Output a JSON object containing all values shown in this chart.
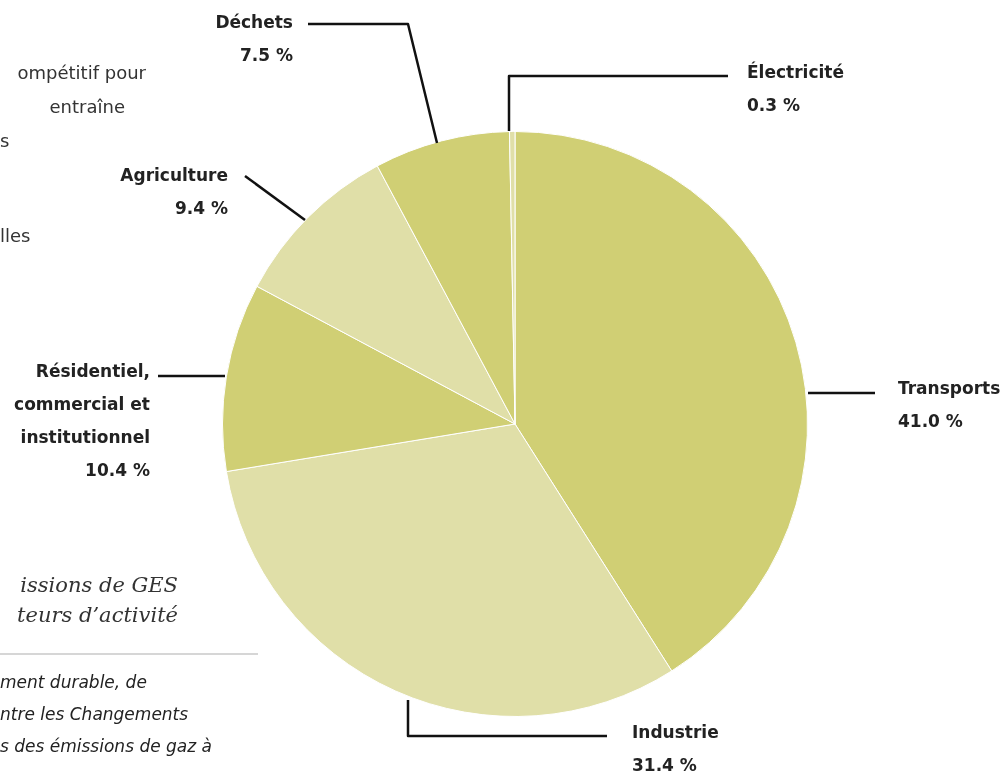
{
  "chart_data": {
    "type": "pie",
    "title": "issions de GES\nteurs d’activité",
    "categories": [
      "Transports",
      "Industrie",
      "Résidentiel, commercial et institutionnel",
      "Agriculture",
      "Déchets",
      "Électricité"
    ],
    "values": [
      41.0,
      31.4,
      10.4,
      9.4,
      7.5,
      0.3
    ],
    "colors": [
      "#d0cf74",
      "#e0dfa8",
      "#d0cf74",
      "#e0dfa8",
      "#d0cf74",
      "#e0dfa8"
    ],
    "value_labels": [
      "41.0 %",
      "31.4 %",
      "10.4 %",
      "9.4 %",
      "7.5 %",
      "0.3 %"
    ],
    "annotations": [
      "ompétitif pour",
      "entraîne",
      "s",
      "lles",
      "ment durable, de",
      "ntre les Changements",
      "s des émissions de gaz à"
    ]
  }
}
